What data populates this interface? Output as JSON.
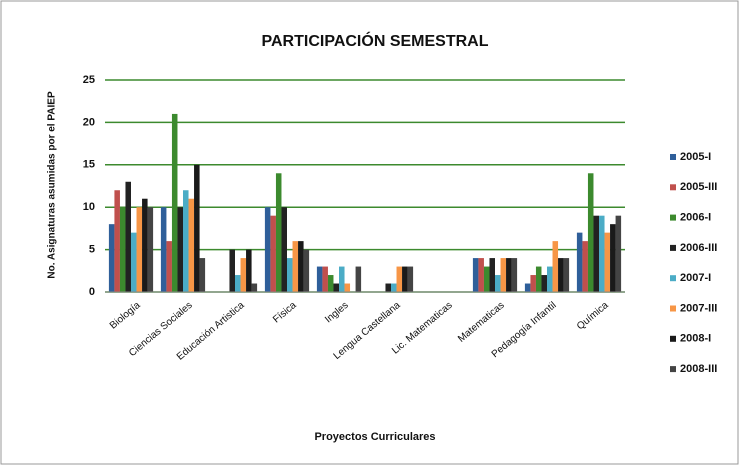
{
  "chart_data": {
    "type": "bar",
    "title": "PARTICIPACIÓN SEMESTRAL",
    "ylabel": "No. Asignaturas asumidas por el PAIEP",
    "xlabel": "Proyectos Curriculares",
    "categories": [
      "Biología",
      "Ciencias Sociales",
      "Educación Artistica",
      "Física",
      "Ingles",
      "Lengua Castellana",
      "Lic. Matematicas",
      "Matematicas",
      "Pedagogía Infantil",
      "Química"
    ],
    "series": [
      {
        "name": "2005-I",
        "color": "#2f5f9a",
        "values": [
          8,
          10,
          0,
          10,
          3,
          0,
          0,
          4,
          1,
          7
        ]
      },
      {
        "name": "2005-III",
        "color": "#c0504d",
        "values": [
          12,
          6,
          0,
          9,
          3,
          0,
          0,
          4,
          2,
          6
        ]
      },
      {
        "name": "2006-I",
        "color": "#3c8a2e",
        "values": [
          10,
          21,
          0,
          14,
          2,
          0,
          0,
          3,
          3,
          14
        ]
      },
      {
        "name": "2006-III",
        "color": "#222222",
        "values": [
          13,
          10,
          5,
          10,
          1,
          1,
          0,
          4,
          2,
          9
        ]
      },
      {
        "name": "2007-I",
        "color": "#4bacc6",
        "values": [
          7,
          12,
          2,
          4,
          3,
          1,
          0,
          2,
          3,
          9
        ]
      },
      {
        "name": "2007-III",
        "color": "#f79646",
        "values": [
          10,
          11,
          4,
          6,
          1,
          3,
          0,
          4,
          6,
          7
        ]
      },
      {
        "name": "2008-I",
        "color": "#1a1a1a",
        "values": [
          11,
          15,
          5,
          6,
          0,
          3,
          0,
          4,
          4,
          8
        ]
      },
      {
        "name": "2008-III",
        "color": "#444444",
        "values": [
          10,
          4,
          1,
          5,
          3,
          3,
          0,
          4,
          4,
          9
        ]
      }
    ],
    "ylim": [
      0,
      25
    ],
    "yticks": [
      0,
      5,
      10,
      15,
      20,
      25
    ],
    "grid": true,
    "grid_color": "#3c8a2e",
    "legend": "right"
  }
}
